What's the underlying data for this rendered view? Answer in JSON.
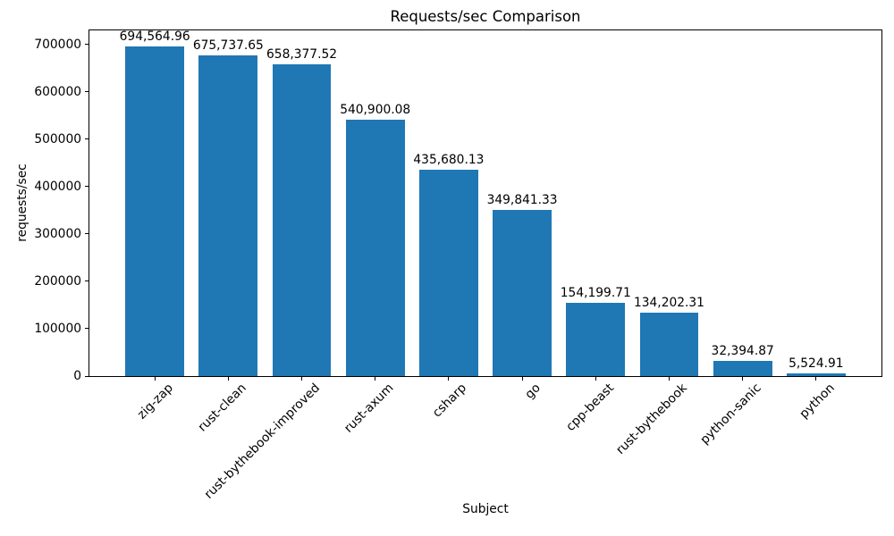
{
  "chart_data": {
    "type": "bar",
    "title": "Requests/sec Comparison",
    "xlabel": "Subject",
    "ylabel": "requests/sec",
    "categories": [
      "zig-zap",
      "rust-clean",
      "rust-bythebook-improved",
      "rust-axum",
      "csharp",
      "go",
      "cpp-beast",
      "rust-bythebook",
      "python-sanic",
      "python"
    ],
    "values": [
      694564.96,
      675737.65,
      658377.52,
      540900.08,
      435680.13,
      349841.33,
      154199.71,
      134202.31,
      32394.87,
      5524.91
    ],
    "value_labels": [
      "694,564.96",
      "675,737.65",
      "658,377.52",
      "540,900.08",
      "435,680.13",
      "349,841.33",
      "154,199.71",
      "134,202.31",
      "32,394.87",
      "5,524.91"
    ],
    "yticks": [
      0,
      100000,
      200000,
      300000,
      400000,
      500000,
      600000,
      700000
    ],
    "ylim": [
      0,
      729293
    ],
    "bar_color": "#1f77b4",
    "bar_width_units": 0.8,
    "x_margin_units": 0.49,
    "grid": false,
    "legend_position": "none"
  }
}
